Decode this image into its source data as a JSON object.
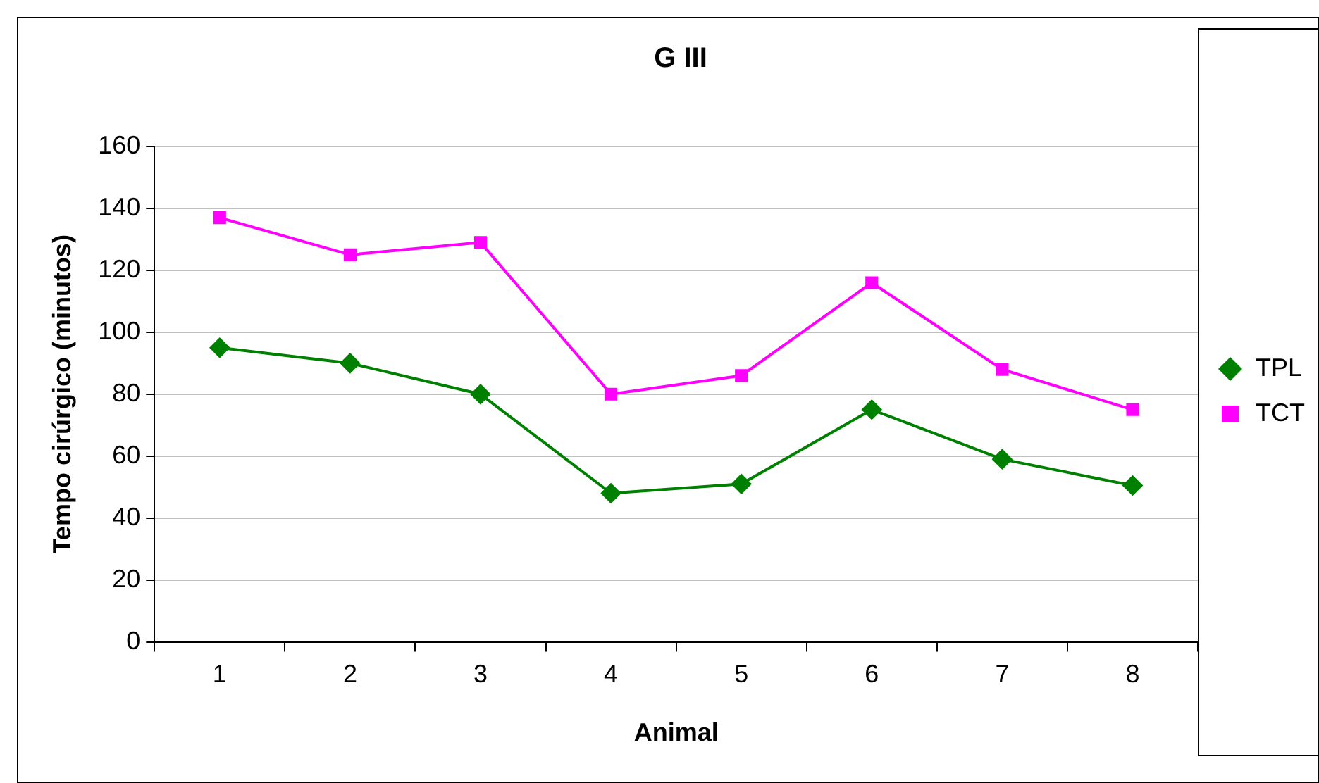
{
  "chart_data": {
    "type": "line",
    "title": "G III",
    "xlabel": "Animal",
    "ylabel": "Tempo cirúrgico (minutos)",
    "categories": [
      "1",
      "2",
      "3",
      "4",
      "5",
      "6",
      "7",
      "8"
    ],
    "series": [
      {
        "name": "TPL",
        "color": "#008000",
        "marker": "diamond",
        "values": [
          95,
          90,
          80,
          48,
          51,
          75,
          59,
          50.5
        ]
      },
      {
        "name": "TCT",
        "color": "#ff00ff",
        "marker": "square",
        "values": [
          137,
          125,
          129,
          80,
          86,
          116,
          88,
          75
        ]
      }
    ],
    "ylim": [
      0,
      160
    ],
    "yticks": [
      0,
      20,
      40,
      60,
      80,
      100,
      120,
      140,
      160
    ],
    "grid": "y",
    "legend": "right",
    "line_style": "solid"
  }
}
